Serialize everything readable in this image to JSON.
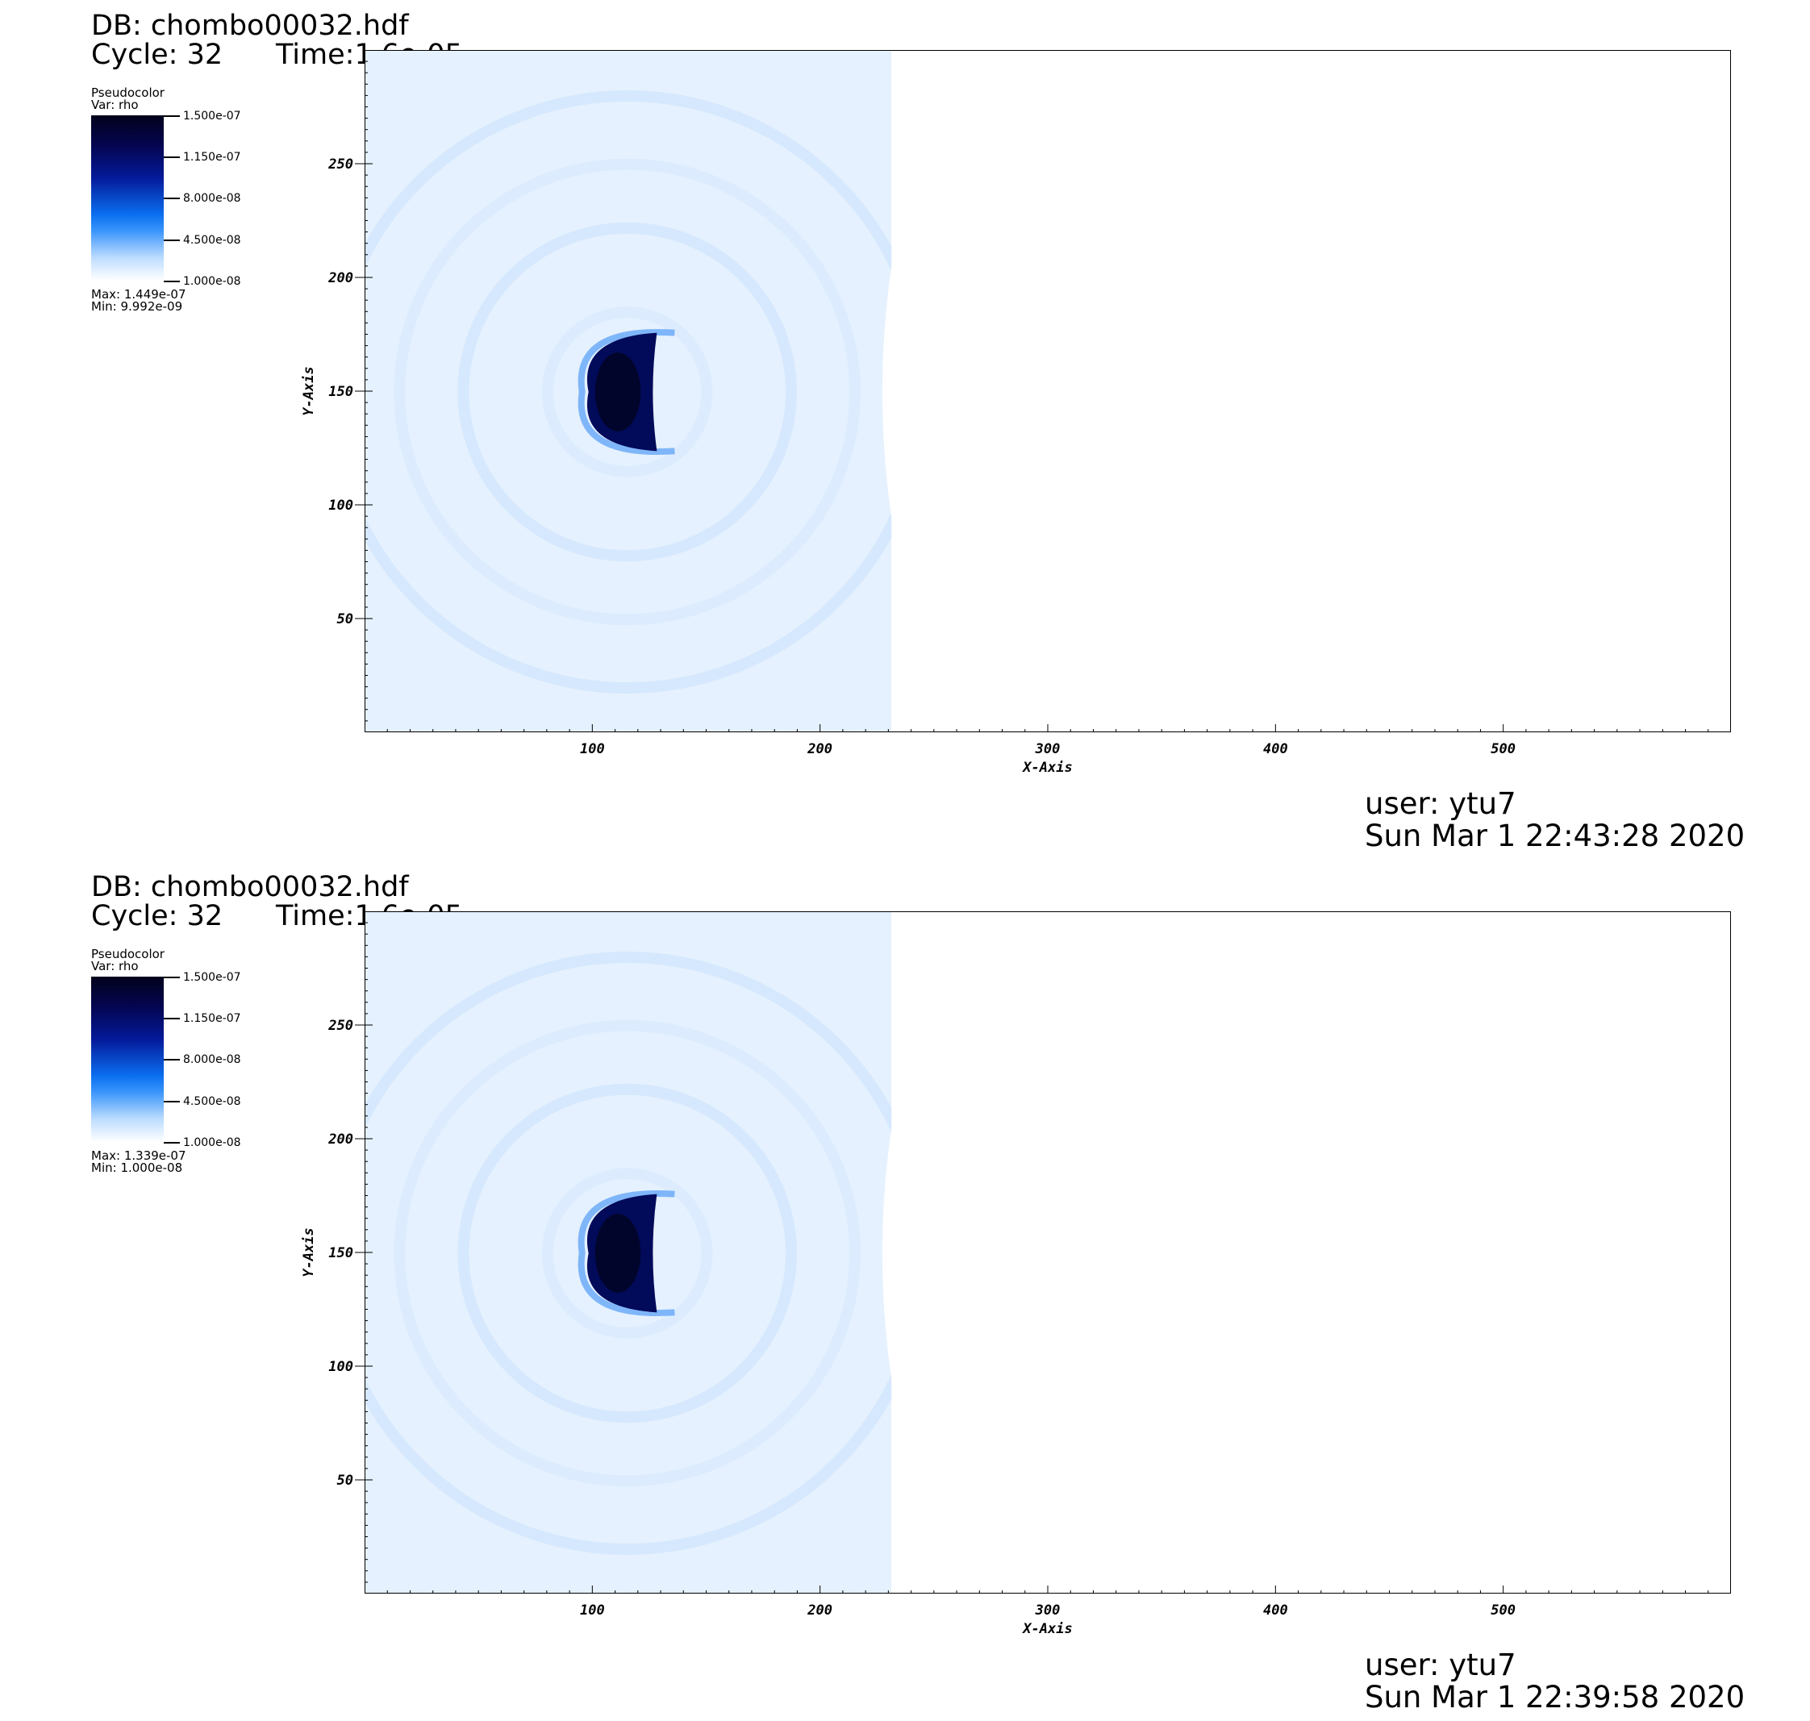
{
  "panels": [
    {
      "db": "DB: chombo00032.hdf",
      "cycle": "Cycle: 32",
      "time": "Time:1.6e-05",
      "legend": {
        "plot_type": "Pseudocolor",
        "var": "Var: rho",
        "ticks": [
          "1.500e-07",
          "1.150e-07",
          "8.000e-08",
          "4.500e-08",
          "1.000e-08"
        ],
        "max": "Max:  1.449e-07",
        "min": "Min:  9.992e-09"
      },
      "user": "user: ytu7",
      "date": "Sun Mar  1 22:43:28 2020"
    },
    {
      "db": "DB: chombo00032.hdf",
      "cycle": "Cycle: 32",
      "time": "Time:1.6e-05",
      "legend": {
        "plot_type": "Pseudocolor",
        "var": "Var: rho",
        "ticks": [
          "1.500e-07",
          "1.150e-07",
          "8.000e-08",
          "4.500e-08",
          "1.000e-08"
        ],
        "max": "Max:  1.339e-07",
        "min": "Min:  1.000e-08"
      },
      "user": "user: ytu7",
      "date": "Sun Mar  1 22:39:58 2020"
    }
  ],
  "chart_data": [
    {
      "type": "heatmap",
      "variable": "rho",
      "xlabel": "X-Axis",
      "ylabel": "Y-Axis",
      "xlim": [
        0,
        600
      ],
      "ylim": [
        0,
        300
      ],
      "xticks": [
        100,
        200,
        300,
        400,
        500
      ],
      "yticks": [
        50,
        100,
        150,
        200,
        250
      ],
      "colorbar_range": [
        1e-08,
        1.5e-07
      ],
      "data_min": 9.992e-09,
      "data_max": 1.449e-07,
      "features": {
        "front_x_range": [
          223,
          231
        ],
        "dense_core": {
          "x_range": [
            98,
            128
          ],
          "y_range": [
            124,
            176
          ]
        },
        "shock_shells": [
          {
            "cx": 115,
            "cy": 150,
            "r": 35
          },
          {
            "cx": 115,
            "cy": 150,
            "r": 72
          },
          {
            "cx": 115,
            "cy": 150,
            "r": 100
          },
          {
            "cx": 115,
            "cy": 150,
            "r": 130
          }
        ]
      }
    },
    {
      "type": "heatmap",
      "variable": "rho",
      "xlabel": "X-Axis",
      "ylabel": "Y-Axis",
      "xlim": [
        0,
        600
      ],
      "ylim": [
        0,
        300
      ],
      "xticks": [
        100,
        200,
        300,
        400,
        500
      ],
      "yticks": [
        50,
        100,
        150,
        200,
        250
      ],
      "colorbar_range": [
        1e-08,
        1.5e-07
      ],
      "data_min": 1e-08,
      "data_max": 1.339e-07,
      "features": {
        "front_x_range": [
          223,
          231
        ],
        "dense_core": {
          "x_range": [
            98,
            128
          ],
          "y_range": [
            124,
            176
          ]
        },
        "shock_shells": [
          {
            "cx": 115,
            "cy": 150,
            "r": 35
          },
          {
            "cx": 115,
            "cy": 150,
            "r": 72
          },
          {
            "cx": 115,
            "cy": 150,
            "r": 100
          },
          {
            "cx": 115,
            "cy": 150,
            "r": 130
          }
        ]
      }
    }
  ]
}
